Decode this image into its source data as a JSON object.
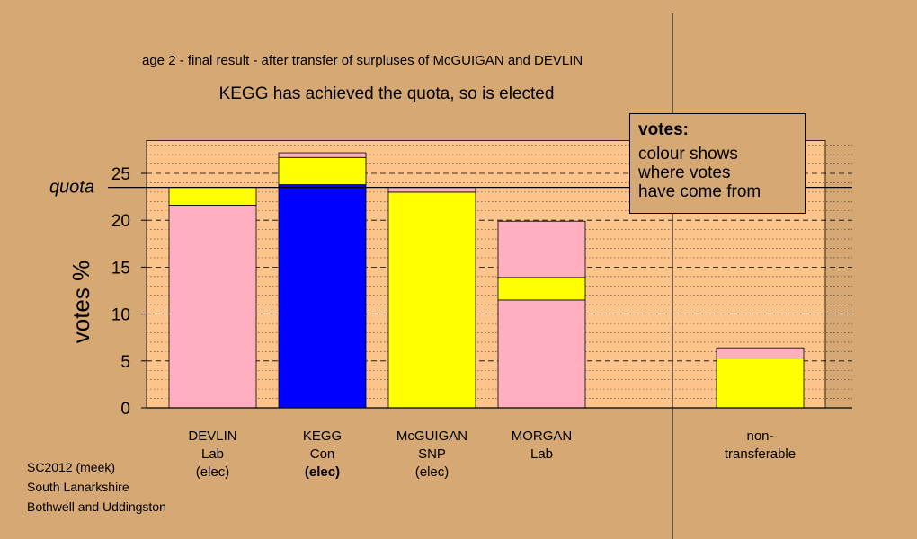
{
  "chart_data": {
    "type": "bar",
    "title": "age 2 - final result - after transfer of surpluses of McGUIGAN and DEVLIN",
    "subtitle": "KEGG has achieved the quota, so is elected",
    "ylabel": "votes %",
    "ylim": [
      0,
      28.5
    ],
    "yticks": [
      "0",
      "5",
      "10",
      "15",
      "20",
      "25"
    ],
    "quota": {
      "label": "quota",
      "value": 23.5
    },
    "grid": true,
    "categories": [
      {
        "lines": [
          "DEVLIN",
          "Lab",
          "(elec)"
        ],
        "bold_last": false
      },
      {
        "lines": [
          "KEGG",
          "Con",
          "(elec)"
        ],
        "bold_last": true
      },
      {
        "lines": [
          "McGUIGAN",
          "SNP",
          "(elec)"
        ],
        "bold_last": false
      },
      {
        "lines": [
          "MORGAN",
          "Lab"
        ],
        "bold_last": false
      },
      {
        "lines": [
          "non-",
          "transferable"
        ],
        "bold_last": false
      }
    ],
    "segments": [
      {
        "category": 0,
        "from": 0,
        "to": 21.6,
        "color": "#ffafc0"
      },
      {
        "category": 0,
        "from": 21.6,
        "to": 23.5,
        "color": "#ffff00"
      },
      {
        "category": 1,
        "from": 0,
        "to": 23.8,
        "color": "#0000ff"
      },
      {
        "category": 1,
        "from": 23.8,
        "to": 26.7,
        "color": "#ffff00"
      },
      {
        "category": 1,
        "from": 26.7,
        "to": 27.2,
        "color": "#ffafc0"
      },
      {
        "category": 2,
        "from": 0,
        "to": 23.0,
        "color": "#ffff00"
      },
      {
        "category": 2,
        "from": 23.0,
        "to": 23.5,
        "color": "#ffafc0"
      },
      {
        "category": 3,
        "from": 0,
        "to": 11.5,
        "color": "#ffafc0"
      },
      {
        "category": 3,
        "from": 11.5,
        "to": 13.9,
        "color": "#ffff00"
      },
      {
        "category": 3,
        "from": 13.9,
        "to": 19.9,
        "color": "#ffafc0"
      },
      {
        "category": 4,
        "from": 0,
        "to": 5.3,
        "color": "#ffff00"
      },
      {
        "category": 4,
        "from": 5.3,
        "to": 6.4,
        "color": "#ffafc0"
      }
    ],
    "legend": {
      "title": "votes:",
      "text": "colour shows\nwhere votes\nhave come from",
      "placement": "top-right"
    }
  },
  "footer": {
    "lines": [
      "SC2012 (meek)",
      "South Lanarkshire",
      "Bothwell and Uddingston"
    ]
  },
  "colors": {
    "background": "#d5a874",
    "plot_background": "#fdc48b",
    "pink": "#ffafc0",
    "yellow": "#ffff00",
    "blue": "#0000ff"
  }
}
